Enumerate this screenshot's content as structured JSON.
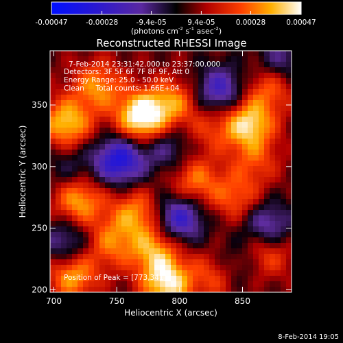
{
  "chart_data": {
    "type": "heatmap",
    "title": "Reconstructed RHESSI Image",
    "xlabel": "Heliocentric X (arcsec)",
    "ylabel": "Heliocentric Y (arcsec)",
    "xlim": [
      697,
      889
    ],
    "ylim": [
      198,
      394
    ],
    "x_ticks": [
      "700",
      "750",
      "800",
      "850"
    ],
    "y_ticks": [
      "200",
      "250",
      "300",
      "350"
    ],
    "colorbar": {
      "ticks": [
        "-0.00047",
        "-0.00028",
        "-9.4e-05",
        "9.4e-05",
        "0.00028",
        "0.00047"
      ],
      "unit_label": "(photons cm",
      "unit_sup1": "-2",
      "unit_mid": " s",
      "unit_sup2": "-1",
      "unit_end": " asec",
      "unit_sup3": "-2",
      "unit_close": ")",
      "range": [
        -0.00047,
        0.00047
      ]
    },
    "annotations": {
      "time_range": "7-Feb-2014 23:31:42.000 to 23:37:00.000",
      "detectors": "Detectors: 3F 5F 6F 7F 8F 9F, Att 0",
      "energy": "Energy Range: 25.0 - 50.0 keV",
      "clean": "Clean     Total counts: 1.66E+04",
      "peak": "Position of Peak = [773,341]"
    },
    "peak": [
      773,
      341
    ],
    "grid": false,
    "sources": [
      {
        "x": 710,
        "y": 335,
        "v": 0.00034
      },
      {
        "x": 770,
        "y": 340,
        "v": 0.00047
      },
      {
        "x": 735,
        "y": 365,
        "v": 0.00026
      },
      {
        "x": 795,
        "y": 352,
        "v": 0.00024
      },
      {
        "x": 855,
        "y": 335,
        "v": 0.00036
      },
      {
        "x": 872,
        "y": 365,
        "v": 0.00022
      },
      {
        "x": 720,
        "y": 272,
        "v": 0.0003
      },
      {
        "x": 765,
        "y": 262,
        "v": 0.00026
      },
      {
        "x": 812,
        "y": 288,
        "v": 0.00024
      },
      {
        "x": 845,
        "y": 275,
        "v": 0.0002
      },
      {
        "x": 745,
        "y": 238,
        "v": 0.00022
      },
      {
        "x": 780,
        "y": 232,
        "v": 0.00028
      },
      {
        "x": 715,
        "y": 212,
        "v": 0.0003
      },
      {
        "x": 790,
        "y": 205,
        "v": 0.00038
      },
      {
        "x": 830,
        "y": 213,
        "v": 0.00026
      },
      {
        "x": 870,
        "y": 230,
        "v": 0.0002
      },
      {
        "x": 860,
        "y": 305,
        "v": 0.00016
      },
      {
        "x": 825,
        "y": 330,
        "v": 0.00014
      },
      {
        "x": 752,
        "y": 305,
        "v": -0.0004
      },
      {
        "x": 832,
        "y": 362,
        "v": -0.0003
      },
      {
        "x": 800,
        "y": 258,
        "v": -0.00034
      },
      {
        "x": 870,
        "y": 252,
        "v": -0.00026
      },
      {
        "x": 710,
        "y": 238,
        "v": -0.00022
      },
      {
        "x": 840,
        "y": 218,
        "v": -0.0002
      },
      {
        "x": 790,
        "y": 315,
        "v": -0.00018
      },
      {
        "x": 880,
        "y": 385,
        "v": -0.0002
      },
      {
        "x": 712,
        "y": 300,
        "v": -0.00012
      }
    ],
    "date_stamp": "8-Feb-2014 19:05"
  }
}
